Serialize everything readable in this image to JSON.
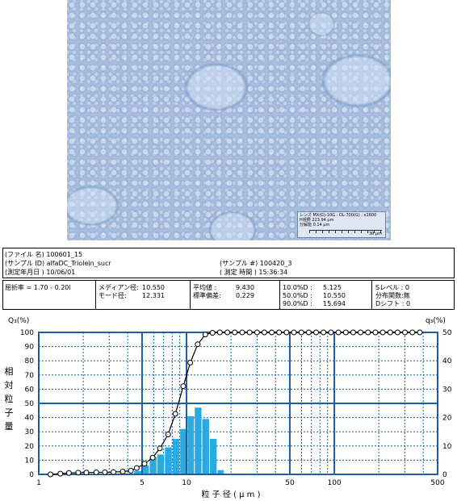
{
  "micrograph": {
    "scale_lines": [
      "レンズ MX(G)-10G : OL-700(G) : x1600",
      "H視野 223.94 μm",
      "分解能 0.14 μm"
    ],
    "scale_bar_label": "30 μm"
  },
  "file_info": {
    "file_name": "(ファイル 名) 100601_15",
    "sample_id": "(サンプル ID) alfaDC_Triolein_sucr",
    "date": "(測定年月日 ) 10/06/01",
    "sample_no": "(サンプル #) 100420_3",
    "time": "( 測定 時間 ) 15:36:34"
  },
  "stats": {
    "refractive": "屈折率 = 1.70 - 0.20i",
    "median_label": "メディアン径:",
    "median_value": "10.550",
    "mode_label": "モード径:",
    "mode_value": "12.331",
    "mean_label": "平均値 :",
    "mean_value": "9.430",
    "sd_label": "標準偏差:",
    "sd_value": "0.229",
    "d10_label": "10.0%D :",
    "d10_value": "5.125",
    "d50_label": "50.0%D :",
    "d50_value": "10.550",
    "d90_label": "90.0%D :",
    "d90_value": "15.694",
    "s_level": "Sレベル : 0",
    "dist_func": "分布関数:無",
    "d_shift": "Dシフト : 0"
  },
  "chart_data": {
    "type": "bar",
    "xscale": "log",
    "xlim": [
      1,
      500
    ],
    "ylim_left": [
      0,
      100
    ],
    "ylim_right": [
      0,
      50
    ],
    "x_ticks": [
      "1",
      "5",
      "10",
      "50",
      "100",
      "500"
    ],
    "y_ticks_left": [
      "0",
      "10",
      "20",
      "30",
      "40",
      "50",
      "60",
      "70",
      "80",
      "90",
      "100"
    ],
    "y_ticks_right": [
      "0",
      "10",
      "20",
      "30",
      "40",
      "50"
    ],
    "ylabel_left_top": "Q₃(%)",
    "ylabel_right_top": "q₃(%)",
    "ylabel_side": [
      "相",
      "対",
      "粒",
      "子",
      "量"
    ],
    "xlabel": "粒 子 径 ( μ m )",
    "colors": {
      "bars": "#29abe2",
      "grid": "#1a5fa3",
      "line": "#000000"
    },
    "series": [
      {
        "type": "bar",
        "axis": "right",
        "bins": [
          [
            3.9,
            4.4
          ],
          [
            4.4,
            5.0
          ],
          [
            5.0,
            5.6
          ],
          [
            5.6,
            6.3
          ],
          [
            6.3,
            7.1
          ],
          [
            7.1,
            8.0
          ],
          [
            8.0,
            9.0
          ],
          [
            9.0,
            10.1
          ],
          [
            10.1,
            11.3
          ],
          [
            11.3,
            12.7
          ],
          [
            12.7,
            14.3
          ],
          [
            14.3,
            16.1
          ],
          [
            16.1,
            18.0
          ]
        ],
        "values": [
          0.3,
          1.2,
          3.2,
          6.0,
          7.0,
          9.5,
          12.5,
          16.0,
          20.5,
          23.5,
          19.5,
          12.5,
          1.5
        ]
      },
      {
        "type": "line",
        "axis": "left",
        "x": [
          1.2,
          1.4,
          1.6,
          1.85,
          2.1,
          2.45,
          2.8,
          3.2,
          3.7,
          4.2,
          4.6,
          5.2,
          5.9,
          6.6,
          7.5,
          8.4,
          9.5,
          10.6,
          11.9,
          13.4,
          15.0,
          16.8,
          18.9,
          21.2,
          23.8,
          26.7,
          30.0,
          33.6,
          37.7,
          42.3,
          47.5,
          53.3,
          59.8,
          67.1,
          75.3,
          84.5,
          94.9,
          106.5,
          119.5,
          134.1,
          150.5,
          168.9,
          189.6,
          212.8,
          238.8,
          268.0,
          300.8,
          337.6,
          378.9
        ],
        "y": [
          0,
          0.5,
          1,
          1.2,
          1.3,
          1.4,
          1.5,
          1.6,
          2.0,
          2.6,
          4.5,
          7.5,
          11.8,
          18.3,
          28.1,
          42.6,
          62.1,
          78.7,
          91.6,
          98.5,
          99.7,
          100,
          100,
          100,
          100,
          100,
          100,
          100,
          100,
          100,
          100,
          100,
          100,
          100,
          100,
          100,
          100,
          100,
          100,
          100,
          100,
          100,
          100,
          100,
          100,
          100,
          100,
          100,
          100
        ]
      }
    ]
  }
}
